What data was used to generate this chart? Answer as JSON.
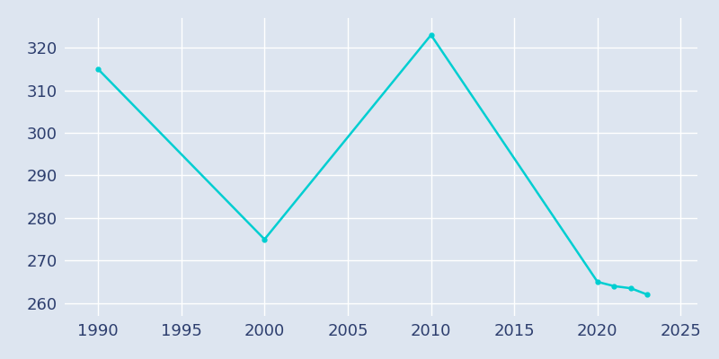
{
  "x": [
    1990,
    2000,
    2010,
    2020,
    2021,
    2022,
    2023
  ],
  "y": [
    315,
    275,
    323,
    265,
    264,
    263.5,
    262
  ],
  "line_color": "#00CED1",
  "marker": "o",
  "marker_size": 3.5,
  "line_width": 1.8,
  "xlim": [
    1988,
    2026
  ],
  "ylim": [
    257,
    327
  ],
  "xticks": [
    1990,
    1995,
    2000,
    2005,
    2010,
    2015,
    2020,
    2025
  ],
  "yticks": [
    260,
    270,
    280,
    290,
    300,
    310,
    320
  ],
  "plot_bg_color": "#dde5f0",
  "fig_bg_color": "#dde5f0",
  "grid_color": "#ffffff",
  "tick_color": "#2d3e6e",
  "tick_fontsize": 13,
  "spine_color": "#dde5f0"
}
